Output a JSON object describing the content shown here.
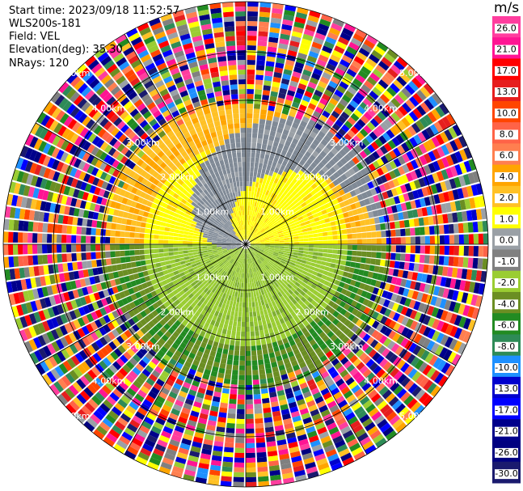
{
  "header": {
    "start_time": "Start time: 2023/09/18 11:52:57",
    "instrument": "WLS200s-181",
    "field": "Field: VEL",
    "elevation": "Elevation(deg): 35.30",
    "nrays": "NRays: 120"
  },
  "colorbar": {
    "unit": "m/s",
    "ticks": [
      "26.0",
      "21.0",
      "17.0",
      "13.0",
      "10.0",
      "8.0",
      "6.0",
      "4.0",
      "2.0",
      "1.0",
      "0.0",
      "-1.0",
      "-2.0",
      "-4.0",
      "-6.0",
      "-8.0",
      "-10.0",
      "-13.0",
      "-17.0",
      "-21.0",
      "-26.0",
      "-30.0"
    ],
    "colors": [
      "#ff3d9e",
      "#ff1493",
      "#ff0000",
      "#e61e1e",
      "#ff4500",
      "#ff6347",
      "#ff7f50",
      "#ffa500",
      "#ffc125",
      "#ffff00",
      "#9aa0a6",
      "#808080",
      "#9acd32",
      "#6b8e23",
      "#228b22",
      "#2e8b57",
      "#1e90ff",
      "#0000cd",
      "#0000ff",
      "#00008b",
      "#000080",
      "#1a1a6e"
    ]
  },
  "rings": {
    "labels": [
      "1.00km",
      "2.00km",
      "3.00km",
      "4.00km",
      "5.00km"
    ]
  },
  "chart_data": {
    "type": "heatmap",
    "description_values": "PPI radial velocity scan",
    "nrays": 120,
    "range_rings_km": [
      1,
      2,
      3,
      4,
      5
    ],
    "clim": [
      -30,
      26
    ]
  }
}
